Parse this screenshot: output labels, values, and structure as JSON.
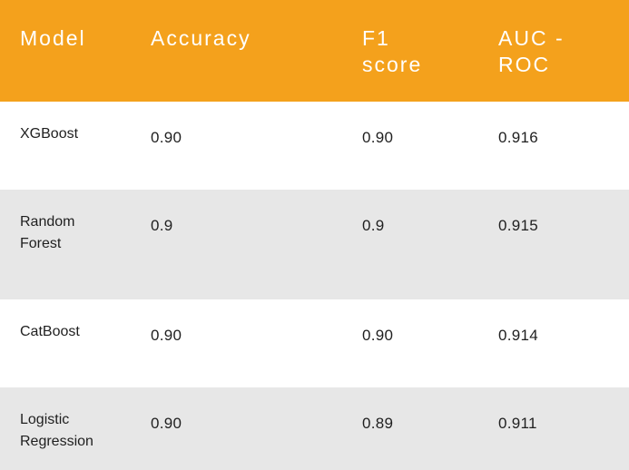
{
  "chart_data": {
    "type": "table",
    "columns": [
      "Model",
      "Accuracy",
      "F1 score",
      "AUC - ROC"
    ],
    "rows": [
      [
        "XGBoost",
        "0.90",
        "0.90",
        "0.916"
      ],
      [
        "Random Forest",
        "0.9",
        "0.9",
        "0.915"
      ],
      [
        "CatBoost",
        "0.90",
        "0.90",
        "0.914"
      ],
      [
        "Logistic Regression",
        "0.90",
        "0.89",
        "0.911"
      ]
    ]
  },
  "colors": {
    "header_background": "#f4a11c",
    "header_text": "#ffffff",
    "stripe_background": "#e7e7e7",
    "body_text": "#1f1f1f"
  }
}
